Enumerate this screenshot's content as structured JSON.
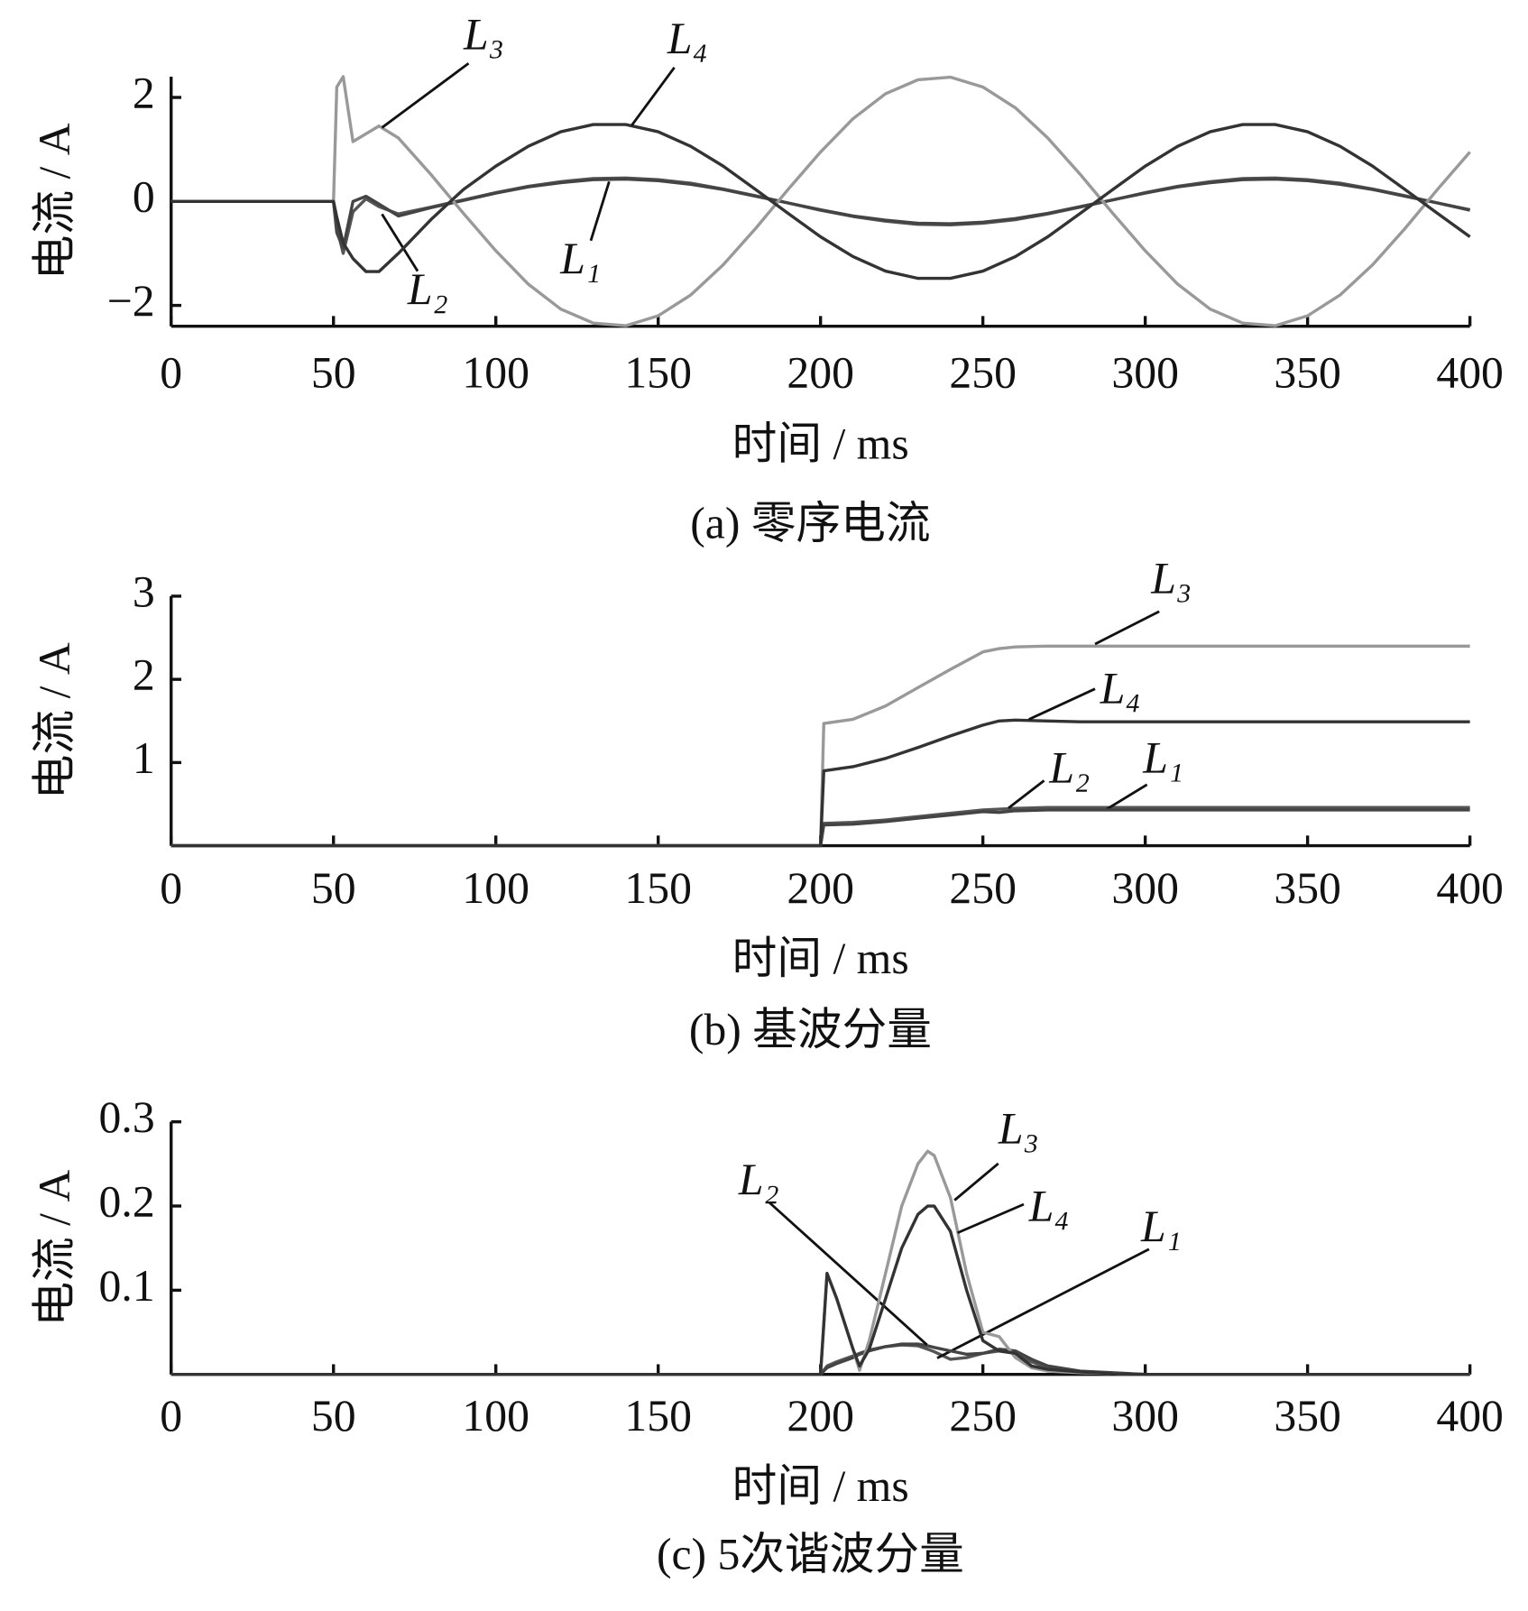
{
  "chart_data": [
    {
      "type": "line",
      "title": "(a)  零序电流",
      "xlabel": "时间 / ms",
      "ylabel": "电流 / A",
      "x": [
        0,
        50,
        51,
        53,
        56,
        60,
        64,
        70,
        80,
        90,
        100,
        110,
        120,
        130,
        140,
        150,
        160,
        170,
        180,
        190,
        200,
        210,
        220,
        230,
        240,
        250,
        260,
        270,
        280,
        290,
        300,
        310,
        320,
        330,
        340,
        350,
        360,
        370,
        380,
        390,
        400
      ],
      "xlim": [
        0,
        400
      ],
      "xticks": [
        0,
        50,
        100,
        150,
        200,
        250,
        300,
        350,
        400
      ],
      "ylim": [
        -2.4,
        2.4
      ],
      "yticks": [
        {
          "value": -2,
          "label": "−2"
        },
        0,
        2
      ],
      "series": [
        {
          "name": "L₁",
          "color": "#555555",
          "values": [
            0,
            0,
            -0.5,
            -1.0,
            -0.2,
            0.05,
            -0.1,
            -0.24,
            -0.11,
            0.03,
            0.17,
            0.29,
            0.38,
            0.44,
            0.45,
            0.42,
            0.35,
            0.24,
            0.11,
            -0.03,
            -0.17,
            -0.29,
            -0.38,
            -0.44,
            -0.45,
            -0.42,
            -0.35,
            -0.24,
            -0.11,
            0.03,
            0.17,
            0.29,
            0.38,
            0.44,
            0.45,
            0.42,
            0.35,
            0.24,
            0.11,
            -0.03,
            -0.17
          ]
        },
        {
          "name": "L₂",
          "color": "#444444",
          "values": [
            0,
            0,
            -0.6,
            -0.9,
            0.0,
            0.1,
            -0.05,
            -0.28,
            -0.12,
            0.02,
            0.16,
            0.28,
            0.36,
            0.42,
            0.43,
            0.4,
            0.33,
            0.23,
            0.1,
            -0.03,
            -0.16,
            -0.28,
            -0.36,
            -0.42,
            -0.43,
            -0.4,
            -0.33,
            -0.23,
            -0.1,
            0.03,
            0.16,
            0.28,
            0.36,
            0.42,
            0.43,
            0.4,
            0.33,
            0.23,
            0.1,
            -0.03,
            -0.16
          ]
        },
        {
          "name": "L₃",
          "color": "#999999",
          "values": [
            0,
            0,
            2.2,
            2.4,
            1.15,
            1.3,
            1.45,
            1.22,
            0.52,
            -0.23,
            -0.95,
            -1.59,
            -2.07,
            -2.34,
            -2.39,
            -2.2,
            -1.8,
            -1.22,
            -0.52,
            0.23,
            0.95,
            1.59,
            2.07,
            2.34,
            2.39,
            2.2,
            1.8,
            1.22,
            0.52,
            -0.23,
            -0.95,
            -1.59,
            -2.07,
            -2.34,
            -2.39,
            -2.2,
            -1.8,
            -1.22,
            -0.52,
            0.23,
            0.95
          ]
        },
        {
          "name": "L₄",
          "color": "#333333",
          "values": [
            0,
            0,
            -0.3,
            -0.8,
            -1.1,
            -1.35,
            -1.35,
            -1.0,
            -0.35,
            0.23,
            0.68,
            1.06,
            1.34,
            1.48,
            1.48,
            1.34,
            1.06,
            0.68,
            0.23,
            -0.23,
            -0.68,
            -1.06,
            -1.34,
            -1.48,
            -1.48,
            -1.34,
            -1.06,
            -0.68,
            -0.23,
            0.23,
            0.68,
            1.06,
            1.34,
            1.48,
            1.48,
            1.34,
            1.06,
            0.68,
            0.23,
            -0.23,
            -0.68
          ]
        }
      ]
    },
    {
      "type": "line",
      "title": "(b)  基波分量",
      "xlabel": "时间 / ms",
      "ylabel": "电流 / A",
      "x": [
        0,
        200,
        201,
        210,
        220,
        230,
        240,
        250,
        255,
        260,
        270,
        280,
        300,
        350,
        400
      ],
      "xlim": [
        0,
        400
      ],
      "xticks": [
        0,
        50,
        100,
        150,
        200,
        250,
        300,
        350,
        400
      ],
      "ylim": [
        0,
        3
      ],
      "yticks": [
        1,
        2,
        3
      ],
      "series": [
        {
          "name": "L₁",
          "color": "#555555",
          "values": [
            0,
            0,
            0.27,
            0.28,
            0.31,
            0.35,
            0.39,
            0.43,
            0.44,
            0.45,
            0.46,
            0.46,
            0.46,
            0.46,
            0.46
          ]
        },
        {
          "name": "L₂",
          "color": "#444444",
          "values": [
            0,
            0,
            0.25,
            0.26,
            0.29,
            0.33,
            0.37,
            0.41,
            0.4,
            0.42,
            0.43,
            0.43,
            0.43,
            0.43,
            0.43
          ]
        },
        {
          "name": "L₃",
          "color": "#999999",
          "values": [
            0,
            0,
            1.47,
            1.52,
            1.68,
            1.9,
            2.12,
            2.33,
            2.37,
            2.39,
            2.4,
            2.4,
            2.4,
            2.4,
            2.4
          ]
        },
        {
          "name": "L₄",
          "color": "#333333",
          "values": [
            0,
            0,
            0.9,
            0.95,
            1.05,
            1.18,
            1.32,
            1.45,
            1.5,
            1.51,
            1.5,
            1.49,
            1.49,
            1.49,
            1.49
          ]
        }
      ]
    },
    {
      "type": "line",
      "title": "(c)  5次谐波分量",
      "xlabel": "时间 / ms",
      "ylabel": "电流 / A",
      "x": [
        0,
        200,
        201,
        202,
        205,
        210,
        212,
        215,
        220,
        225,
        230,
        233,
        235,
        240,
        245,
        250,
        255,
        260,
        265,
        270,
        280,
        290,
        300,
        350,
        400
      ],
      "xlim": [
        0,
        400
      ],
      "xticks": [
        0,
        50,
        100,
        150,
        200,
        250,
        300,
        350,
        400
      ],
      "ylim": [
        0,
        0.3
      ],
      "yticks": [
        0.1,
        0.2,
        0.3
      ],
      "series": [
        {
          "name": "L₁",
          "color": "#555555",
          "values": [
            0,
            0,
            0.005,
            0.01,
            0.015,
            0.022,
            0.025,
            0.029,
            0.033,
            0.035,
            0.034,
            0.03,
            0.027,
            0.018,
            0.02,
            0.025,
            0.028,
            0.025,
            0.015,
            0.008,
            0.003,
            0.001,
            0,
            0,
            0
          ]
        },
        {
          "name": "L₂",
          "color": "#444444",
          "values": [
            0,
            0,
            0.004,
            0.008,
            0.013,
            0.02,
            0.024,
            0.028,
            0.033,
            0.036,
            0.036,
            0.034,
            0.032,
            0.028,
            0.024,
            0.025,
            0.03,
            0.028,
            0.018,
            0.01,
            0.004,
            0.002,
            0,
            0,
            0
          ]
        },
        {
          "name": "L₃",
          "color": "#999999",
          "values": [
            0,
            0,
            0.06,
            0.12,
            0.09,
            0.03,
            0.005,
            0.04,
            0.12,
            0.2,
            0.25,
            0.265,
            0.26,
            0.21,
            0.12,
            0.05,
            0.045,
            0.02,
            0.008,
            0.004,
            0.002,
            0.001,
            0,
            0,
            0
          ]
        },
        {
          "name": "L₄",
          "color": "#333333",
          "values": [
            0,
            0,
            0.06,
            0.12,
            0.09,
            0.03,
            0.01,
            0.03,
            0.09,
            0.15,
            0.19,
            0.2,
            0.2,
            0.17,
            0.1,
            0.04,
            0.028,
            0.025,
            0.01,
            0.006,
            0.003,
            0.001,
            0,
            0,
            0
          ]
        }
      ]
    }
  ]
}
